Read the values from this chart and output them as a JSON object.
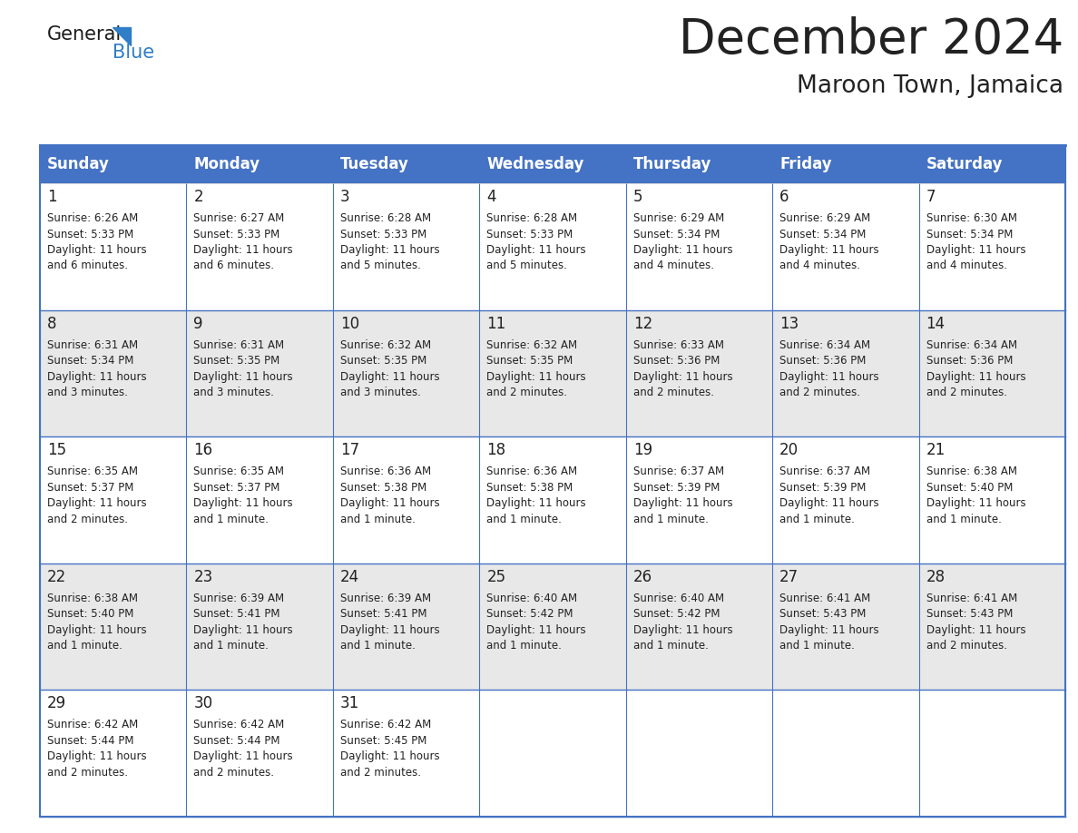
{
  "title": "December 2024",
  "subtitle": "Maroon Town, Jamaica",
  "header_bg": "#4472C4",
  "header_text_color": "#FFFFFF",
  "cell_bg_even": "#FFFFFF",
  "cell_bg_odd": "#E8E8E8",
  "border_color": "#4472C4",
  "day_names": [
    "Sunday",
    "Monday",
    "Tuesday",
    "Wednesday",
    "Thursday",
    "Friday",
    "Saturday"
  ],
  "days": [
    {
      "date": 1,
      "row": 0,
      "col": 0,
      "sunrise": "6:26 AM",
      "sunset": "5:33 PM",
      "dl1": "11 hours",
      "dl2": "and 6 minutes."
    },
    {
      "date": 2,
      "row": 0,
      "col": 1,
      "sunrise": "6:27 AM",
      "sunset": "5:33 PM",
      "dl1": "11 hours",
      "dl2": "and 6 minutes."
    },
    {
      "date": 3,
      "row": 0,
      "col": 2,
      "sunrise": "6:28 AM",
      "sunset": "5:33 PM",
      "dl1": "11 hours",
      "dl2": "and 5 minutes."
    },
    {
      "date": 4,
      "row": 0,
      "col": 3,
      "sunrise": "6:28 AM",
      "sunset": "5:33 PM",
      "dl1": "11 hours",
      "dl2": "and 5 minutes."
    },
    {
      "date": 5,
      "row": 0,
      "col": 4,
      "sunrise": "6:29 AM",
      "sunset": "5:34 PM",
      "dl1": "11 hours",
      "dl2": "and 4 minutes."
    },
    {
      "date": 6,
      "row": 0,
      "col": 5,
      "sunrise": "6:29 AM",
      "sunset": "5:34 PM",
      "dl1": "11 hours",
      "dl2": "and 4 minutes."
    },
    {
      "date": 7,
      "row": 0,
      "col": 6,
      "sunrise": "6:30 AM",
      "sunset": "5:34 PM",
      "dl1": "11 hours",
      "dl2": "and 4 minutes."
    },
    {
      "date": 8,
      "row": 1,
      "col": 0,
      "sunrise": "6:31 AM",
      "sunset": "5:34 PM",
      "dl1": "11 hours",
      "dl2": "and 3 minutes."
    },
    {
      "date": 9,
      "row": 1,
      "col": 1,
      "sunrise": "6:31 AM",
      "sunset": "5:35 PM",
      "dl1": "11 hours",
      "dl2": "and 3 minutes."
    },
    {
      "date": 10,
      "row": 1,
      "col": 2,
      "sunrise": "6:32 AM",
      "sunset": "5:35 PM",
      "dl1": "11 hours",
      "dl2": "and 3 minutes."
    },
    {
      "date": 11,
      "row": 1,
      "col": 3,
      "sunrise": "6:32 AM",
      "sunset": "5:35 PM",
      "dl1": "11 hours",
      "dl2": "and 2 minutes."
    },
    {
      "date": 12,
      "row": 1,
      "col": 4,
      "sunrise": "6:33 AM",
      "sunset": "5:36 PM",
      "dl1": "11 hours",
      "dl2": "and 2 minutes."
    },
    {
      "date": 13,
      "row": 1,
      "col": 5,
      "sunrise": "6:34 AM",
      "sunset": "5:36 PM",
      "dl1": "11 hours",
      "dl2": "and 2 minutes."
    },
    {
      "date": 14,
      "row": 1,
      "col": 6,
      "sunrise": "6:34 AM",
      "sunset": "5:36 PM",
      "dl1": "11 hours",
      "dl2": "and 2 minutes."
    },
    {
      "date": 15,
      "row": 2,
      "col": 0,
      "sunrise": "6:35 AM",
      "sunset": "5:37 PM",
      "dl1": "11 hours",
      "dl2": "and 2 minutes."
    },
    {
      "date": 16,
      "row": 2,
      "col": 1,
      "sunrise": "6:35 AM",
      "sunset": "5:37 PM",
      "dl1": "11 hours",
      "dl2": "and 1 minute."
    },
    {
      "date": 17,
      "row": 2,
      "col": 2,
      "sunrise": "6:36 AM",
      "sunset": "5:38 PM",
      "dl1": "11 hours",
      "dl2": "and 1 minute."
    },
    {
      "date": 18,
      "row": 2,
      "col": 3,
      "sunrise": "6:36 AM",
      "sunset": "5:38 PM",
      "dl1": "11 hours",
      "dl2": "and 1 minute."
    },
    {
      "date": 19,
      "row": 2,
      "col": 4,
      "sunrise": "6:37 AM",
      "sunset": "5:39 PM",
      "dl1": "11 hours",
      "dl2": "and 1 minute."
    },
    {
      "date": 20,
      "row": 2,
      "col": 5,
      "sunrise": "6:37 AM",
      "sunset": "5:39 PM",
      "dl1": "11 hours",
      "dl2": "and 1 minute."
    },
    {
      "date": 21,
      "row": 2,
      "col": 6,
      "sunrise": "6:38 AM",
      "sunset": "5:40 PM",
      "dl1": "11 hours",
      "dl2": "and 1 minute."
    },
    {
      "date": 22,
      "row": 3,
      "col": 0,
      "sunrise": "6:38 AM",
      "sunset": "5:40 PM",
      "dl1": "11 hours",
      "dl2": "and 1 minute."
    },
    {
      "date": 23,
      "row": 3,
      "col": 1,
      "sunrise": "6:39 AM",
      "sunset": "5:41 PM",
      "dl1": "11 hours",
      "dl2": "and 1 minute."
    },
    {
      "date": 24,
      "row": 3,
      "col": 2,
      "sunrise": "6:39 AM",
      "sunset": "5:41 PM",
      "dl1": "11 hours",
      "dl2": "and 1 minute."
    },
    {
      "date": 25,
      "row": 3,
      "col": 3,
      "sunrise": "6:40 AM",
      "sunset": "5:42 PM",
      "dl1": "11 hours",
      "dl2": "and 1 minute."
    },
    {
      "date": 26,
      "row": 3,
      "col": 4,
      "sunrise": "6:40 AM",
      "sunset": "5:42 PM",
      "dl1": "11 hours",
      "dl2": "and 1 minute."
    },
    {
      "date": 27,
      "row": 3,
      "col": 5,
      "sunrise": "6:41 AM",
      "sunset": "5:43 PM",
      "dl1": "11 hours",
      "dl2": "and 1 minute."
    },
    {
      "date": 28,
      "row": 3,
      "col": 6,
      "sunrise": "6:41 AM",
      "sunset": "5:43 PM",
      "dl1": "11 hours",
      "dl2": "and 2 minutes."
    },
    {
      "date": 29,
      "row": 4,
      "col": 0,
      "sunrise": "6:42 AM",
      "sunset": "5:44 PM",
      "dl1": "11 hours",
      "dl2": "and 2 minutes."
    },
    {
      "date": 30,
      "row": 4,
      "col": 1,
      "sunrise": "6:42 AM",
      "sunset": "5:44 PM",
      "dl1": "11 hours",
      "dl2": "and 2 minutes."
    },
    {
      "date": 31,
      "row": 4,
      "col": 2,
      "sunrise": "6:42 AM",
      "sunset": "5:45 PM",
      "dl1": "11 hours",
      "dl2": "and 2 minutes."
    }
  ],
  "num_rows": 5,
  "num_cols": 7,
  "text_color": "#222222",
  "date_fontsize": 12,
  "info_fontsize": 8.5,
  "header_fontsize": 12,
  "title_fontsize": 38,
  "subtitle_fontsize": 19
}
